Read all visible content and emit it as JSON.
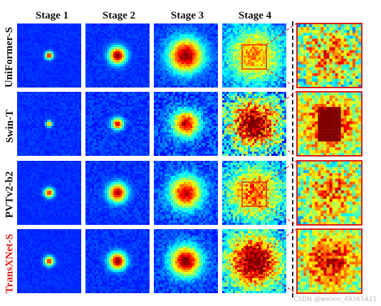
{
  "columns": [
    "Stage 1",
    "Stage 2",
    "Stage 3",
    "Stage 4"
  ],
  "rows": [
    {
      "label": "UniFormer-S",
      "highlight": false
    },
    {
      "label": "Swin-T",
      "highlight": false
    },
    {
      "label": "PVTv2-b2",
      "highlight": false
    },
    {
      "label": "TransXNet-S",
      "highlight": true
    }
  ],
  "heatmaps": [
    [
      {
        "intensity": 0.9,
        "spread": 0.04,
        "noise": 0.02
      },
      {
        "intensity": 1.0,
        "spread": 0.09,
        "noise": 0.03
      },
      {
        "intensity": 1.0,
        "spread": 0.18,
        "noise": 0.06
      },
      {
        "intensity": 0.65,
        "spread": 0.3,
        "noise": 0.12
      }
    ],
    [
      {
        "intensity": 0.8,
        "spread": 0.03,
        "noise": 0.03
      },
      {
        "intensity": 0.9,
        "spread": 0.06,
        "noise": 0.05
      },
      {
        "intensity": 0.9,
        "spread": 0.14,
        "noise": 0.1
      },
      {
        "intensity": 1.0,
        "spread": 0.26,
        "noise": 0.3
      }
    ],
    [
      {
        "intensity": 0.85,
        "spread": 0.05,
        "noise": 0.02
      },
      {
        "intensity": 0.95,
        "spread": 0.1,
        "noise": 0.04
      },
      {
        "intensity": 0.9,
        "spread": 0.17,
        "noise": 0.08
      },
      {
        "intensity": 0.7,
        "spread": 0.3,
        "noise": 0.18
      }
    ],
    [
      {
        "intensity": 0.85,
        "spread": 0.05,
        "noise": 0.02
      },
      {
        "intensity": 1.0,
        "spread": 0.09,
        "noise": 0.04
      },
      {
        "intensity": 1.0,
        "spread": 0.16,
        "noise": 0.07
      },
      {
        "intensity": 1.0,
        "spread": 0.3,
        "noise": 0.2
      }
    ]
  ],
  "zoom_style": [
    {
      "base": "#6aa8f0",
      "core": "#d8e84a",
      "grain": 0.5
    },
    {
      "base": "#3ad0e8",
      "core": "#e84020",
      "grain": 0.35
    },
    {
      "base": "#3ad8d0",
      "core": "#f0c020",
      "grain": 0.45
    },
    {
      "base": "#3ad8d8",
      "core": "#e83018",
      "grain": 0.35
    }
  ],
  "colors": {
    "highlight_box": "#e01b1b",
    "separator": "#222222"
  },
  "watermark": "CSDN @weixin_49365421"
}
